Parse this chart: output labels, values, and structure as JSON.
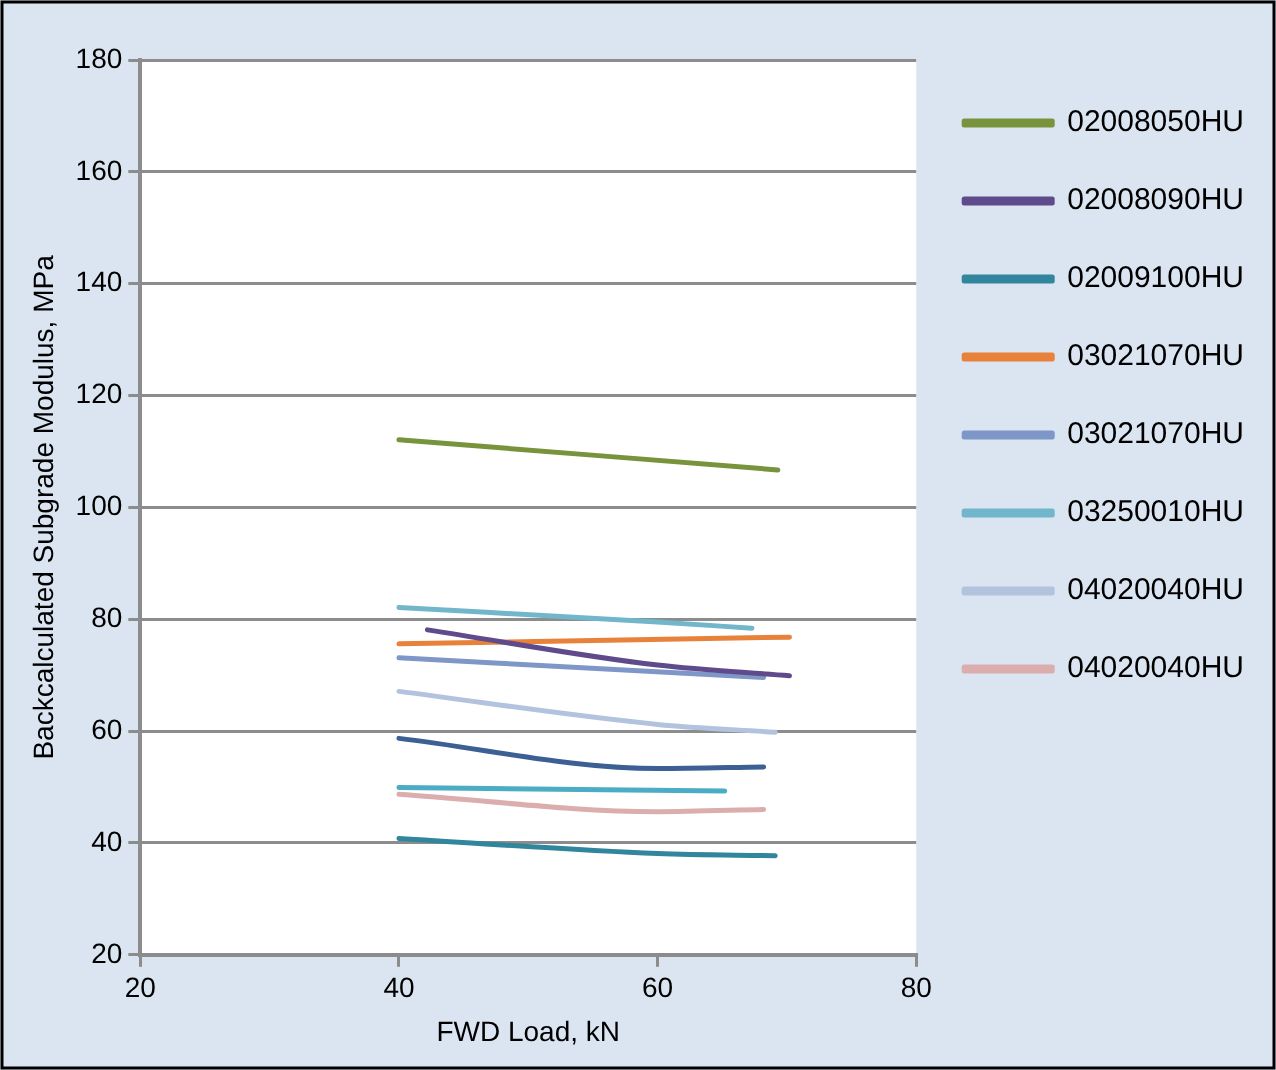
{
  "chart_data": {
    "type": "line",
    "xlabel": "FWD Load, kN",
    "ylabel": "Backcalculated Subgrade Modulus, MPa",
    "xlim": [
      20,
      80
    ],
    "xticks": [
      20,
      40,
      60,
      80
    ],
    "ylim": [
      20,
      180
    ],
    "yticks": [
      20,
      40,
      60,
      80,
      100,
      120,
      140,
      160,
      180
    ],
    "grid": "y",
    "legend": "right",
    "marker": "none",
    "line_style": "solid",
    "series": [
      {
        "name": "02008050HU",
        "color": "#77933c",
        "x": [
          40,
          69.3
        ],
        "values": [
          112.1,
          106.7
        ]
      },
      {
        "name": "02008090HU",
        "color": "#5f4b8b",
        "x": [
          42.2,
          60,
          70.2
        ],
        "values": [
          78.1,
          71.8,
          69.9
        ]
      },
      {
        "name": "02009100HU",
        "color": "#31859c",
        "x": [
          40,
          60,
          69.1
        ],
        "values": [
          40.8,
          38.1,
          37.7
        ]
      },
      {
        "name": "03021070HU",
        "color": "#e8823a",
        "x": [
          40,
          70.2
        ],
        "values": [
          75.6,
          76.8
        ]
      },
      {
        "name": "03021070HU",
        "color": "#7f96c8",
        "x": [
          40,
          68.2
        ],
        "values": [
          73.1,
          69.6
        ]
      },
      {
        "name": "03250010HU",
        "color": "#72b6cc",
        "x": [
          40,
          60,
          67.3
        ],
        "values": [
          82.1,
          79.5,
          78.4
        ]
      },
      {
        "name": "04020040HU",
        "color": "#b3c3dd",
        "x": [
          40,
          60,
          69.1
        ],
        "values": [
          67.1,
          61.2,
          59.8
        ]
      },
      {
        "name": "04020040HU",
        "color": "#dbadad",
        "x": [
          40,
          60,
          68.2
        ],
        "values": [
          48.7,
          45.6,
          46.0
        ]
      },
      {
        "color": "#3c5f94",
        "x": [
          40,
          60,
          68.2
        ],
        "values": [
          58.7,
          53.3,
          53.6
        ]
      },
      {
        "color": "#4bacc6",
        "x": [
          40,
          65.2
        ],
        "values": [
          49.9,
          49.3
        ]
      }
    ]
  }
}
